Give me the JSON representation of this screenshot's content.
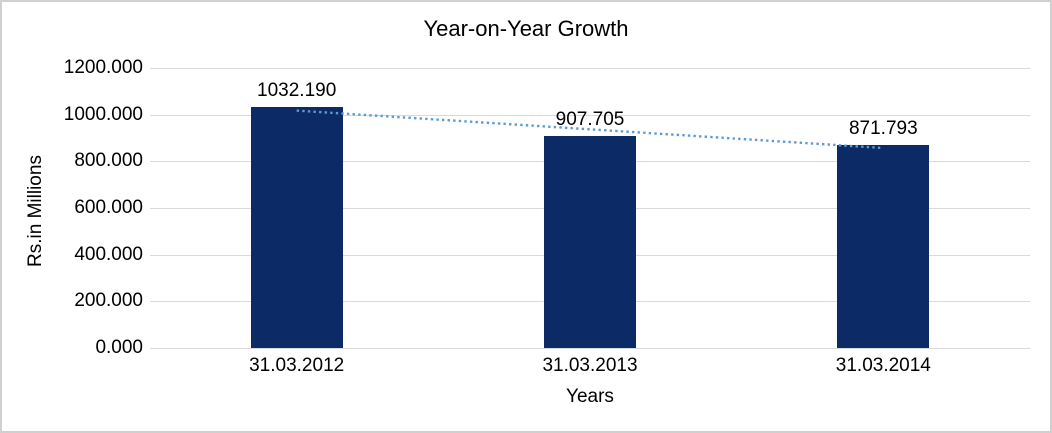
{
  "chart_data": {
    "type": "bar",
    "title": "Year-on-Year Growth",
    "categories": [
      "31.03.2012",
      "31.03.2013",
      "31.03.2014"
    ],
    "values": [
      1032.19,
      907.705,
      871.793
    ],
    "data_labels": [
      "1032.190",
      "907.705",
      "871.793"
    ],
    "xlabel": "Years",
    "ylabel": "Rs.in Millions",
    "ylim": [
      0,
      1200
    ],
    "ytick_interval": 200,
    "ytick_labels": [
      "0.000",
      "200.000",
      "400.000",
      "600.000",
      "800.000",
      "1000.000",
      "1200.000"
    ],
    "grid": true,
    "legend": "none",
    "trendline": {
      "type": "linear",
      "dash": "dotted"
    },
    "colors": {
      "bar": "#0B2A66",
      "trendline": "#5B9BD5",
      "gridline": "#D9D9D9",
      "text": "#000000",
      "frame_border": "#D0D0D0"
    }
  }
}
